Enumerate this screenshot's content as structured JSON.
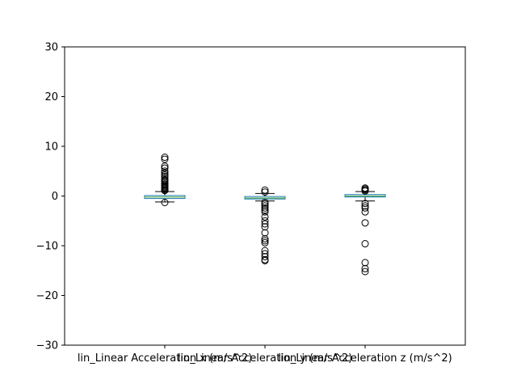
{
  "chart_data": {
    "type": "box",
    "title": "",
    "xlabel": "",
    "ylabel": "",
    "ylim": [
      -30,
      30
    ],
    "yticks": [
      -30,
      -20,
      -10,
      0,
      10,
      20,
      30
    ],
    "grid": false,
    "categories": [
      "lin_Linear Acceleration x (m/s^2)",
      "lin_Linear Acceleration y (m/s^2)",
      "lin_Linear Acceleration z (m/s^2)"
    ],
    "colors": {
      "box": "#1f77b4",
      "median": "#2ca02c",
      "whisker": "#000000",
      "flier": "#000000"
    },
    "boxes": [
      {
        "name": "lin_Linear Acceleration x (m/s^2)",
        "whislo": -1.2,
        "q1": -0.5,
        "med": -0.2,
        "q3": 0.1,
        "whishi": 0.9,
        "fliers": [
          7.8,
          7.4,
          6.0,
          5.6,
          5.0,
          4.6,
          4.2,
          3.9,
          3.5,
          3.2,
          3.0,
          2.7,
          2.4,
          2.2,
          2.0,
          1.8,
          1.6,
          1.4,
          1.2,
          1.1,
          -1.3
        ]
      },
      {
        "name": "lin_Linear Acceleration y (m/s^2)",
        "whislo": -1.0,
        "q1": -0.6,
        "med": -0.4,
        "q3": -0.1,
        "whishi": 0.5,
        "fliers": [
          1.2,
          0.8,
          -1.3,
          -1.6,
          -2.0,
          -2.4,
          -2.8,
          -3.2,
          -4.2,
          -5.0,
          -5.6,
          -6.2,
          -7.4,
          -8.6,
          -9.0,
          -9.4,
          -11.0,
          -11.6,
          -12.2,
          -12.8,
          -13.0
        ]
      },
      {
        "name": "lin_Linear Acceleration z (m/s^2)",
        "whislo": -1.0,
        "q1": -0.2,
        "med": 0.0,
        "q3": 0.3,
        "whishi": 0.9,
        "fliers": [
          1.6,
          1.4,
          1.2,
          1.0,
          -1.5,
          -2.0,
          -2.4,
          -3.2,
          -5.4,
          -9.6,
          -13.4,
          -14.6,
          -15.2
        ]
      }
    ]
  }
}
